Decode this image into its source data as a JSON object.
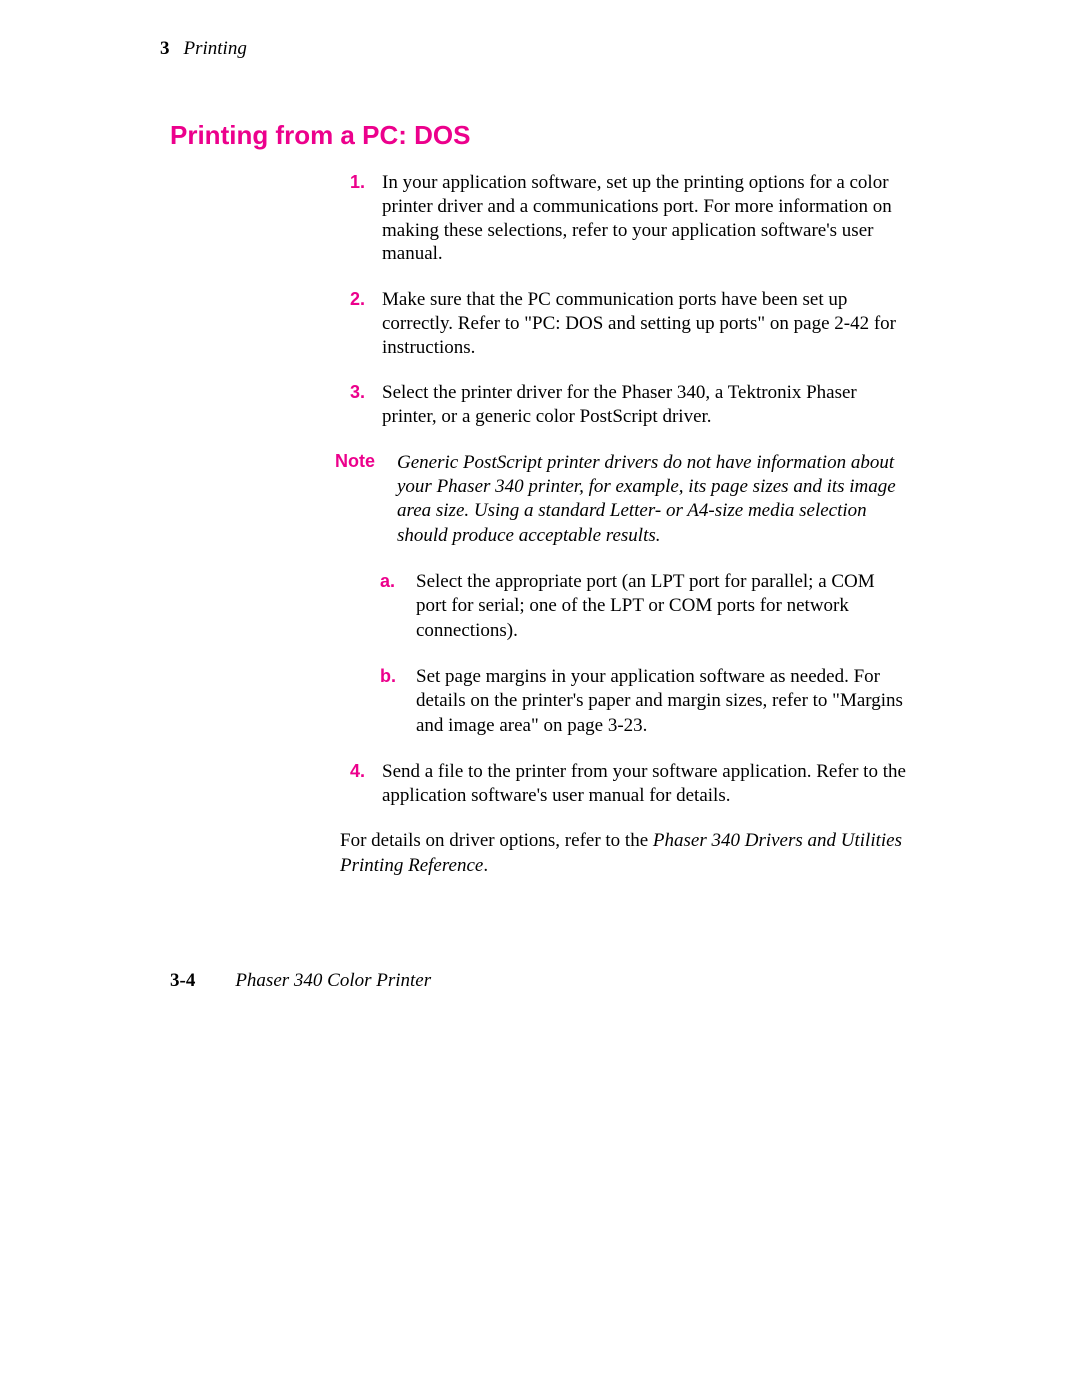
{
  "header": {
    "chapter_number": "3",
    "chapter_title": "Printing"
  },
  "heading": "Printing from a PC:  DOS",
  "steps": [
    {
      "marker": "1.",
      "text": "In your application software, set up the printing options for a color printer driver and a communications port.  For more information on making these selections, refer to your application software's user manual."
    },
    {
      "marker": "2.",
      "text": "Make sure that the PC communication ports have been set up correctly.  Refer to \"PC: DOS and setting up ports\" on page 2-42 for instructions."
    },
    {
      "marker": "3.",
      "text": "Select the printer driver for the Phaser 340, a Tektronix Phaser printer, or a generic color PostScript driver."
    }
  ],
  "note": {
    "label": "Note",
    "text": "Generic PostScript printer drivers do not have information about your Phaser 340 printer, for example, its page sizes and its image area size.  Using a standard Letter- or A4-size media selection should produce acceptable results."
  },
  "substeps": [
    {
      "marker": "a.",
      "text": "Select the appropriate port (an LPT port for parallel; a COM port for serial; one of the LPT or COM ports for network connections)."
    },
    {
      "marker": "b.",
      "text": "Set page margins in your application software as needed.  For details on the printer's paper and margin sizes, refer to \"Margins and image area\" on page 3-23."
    }
  ],
  "step4": {
    "marker": "4.",
    "text": "Send a file to the printer from your software application.   Refer to the application software's user manual for details."
  },
  "closing_pre": "For details on driver options, refer to the ",
  "closing_ital": "Phaser 340 Drivers and Utilities Printing Reference",
  "closing_post": ".",
  "footer": {
    "page_number": "3-4",
    "product_name": "Phaser 340 Color Printer"
  }
}
